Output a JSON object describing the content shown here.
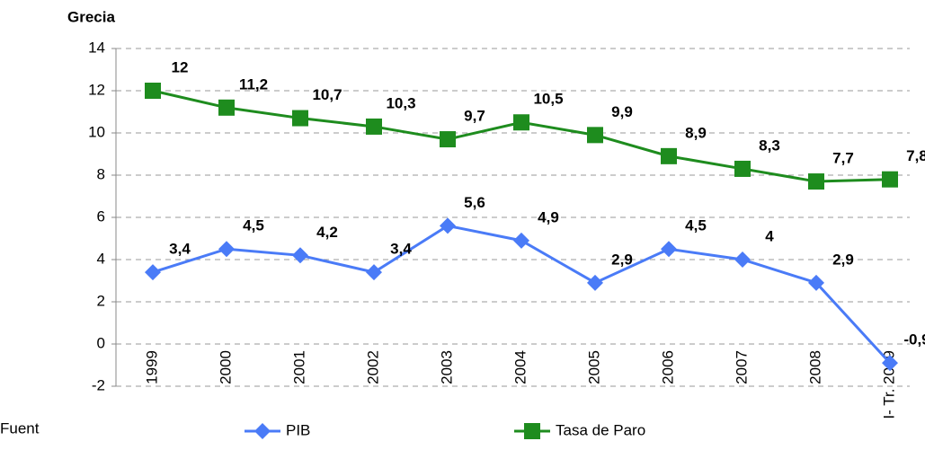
{
  "chart_data": {
    "type": "line",
    "title": "Grecia",
    "categories": [
      "1999",
      "2000",
      "2001",
      "2002",
      "2003",
      "2004",
      "2005",
      "2006",
      "2007",
      "2008",
      "I- Tr. 2009"
    ],
    "series": [
      {
        "name": "PIB",
        "color": "#4a7bf7",
        "marker": "diamond",
        "values": [
          3.4,
          4.5,
          4.2,
          3.4,
          5.6,
          4.9,
          2.9,
          4.5,
          4,
          2.9,
          -0.9
        ],
        "value_labels": [
          "3,4",
          "4,5",
          "4,2",
          "3,4",
          "5,6",
          "4,9",
          "2,9",
          "4,5",
          "4",
          "2,9",
          "-0,9"
        ]
      },
      {
        "name": "Tasa de Paro",
        "color": "#1e8c1e",
        "marker": "square",
        "values": [
          12,
          11.2,
          10.7,
          10.3,
          9.7,
          10.5,
          9.9,
          8.9,
          8.3,
          7.7,
          7.8
        ],
        "value_labels": [
          "12",
          "11,2",
          "10,7",
          "10,3",
          "9,7",
          "10,5",
          "9,9",
          "8,9",
          "8,3",
          "7,7",
          "7,8"
        ]
      }
    ],
    "ylim": [
      -2,
      14
    ],
    "yticks": [
      -2,
      0,
      2,
      4,
      6,
      8,
      10,
      12,
      14
    ],
    "grid": true,
    "source": "Fuent"
  }
}
